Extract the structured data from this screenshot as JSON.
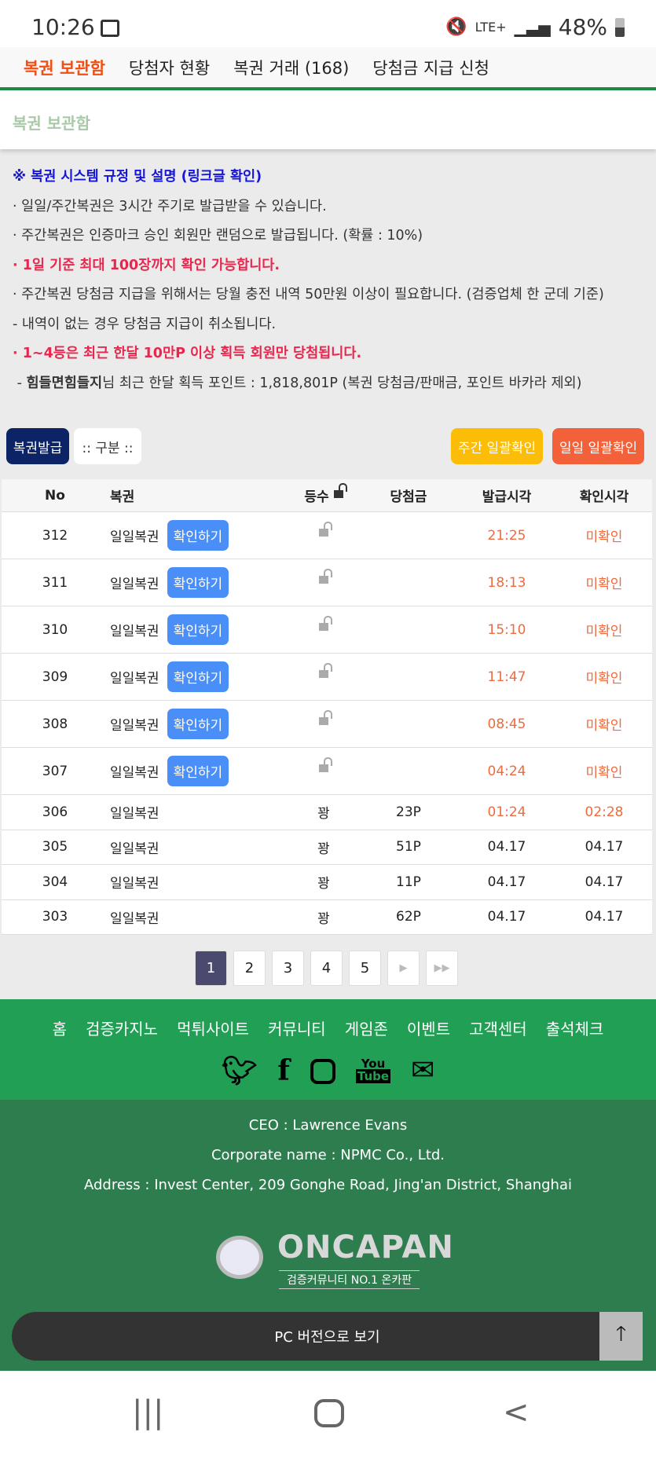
{
  "status_bar": {
    "time": "10:26",
    "network": "LTE+",
    "battery": "48%",
    "icons": [
      "gallery-icon",
      "mute-icon",
      "signal-icon",
      "battery-icon"
    ]
  },
  "tabs": [
    {
      "label": "복권 보관함",
      "active": true
    },
    {
      "label": "당첨자 현황"
    },
    {
      "label": "복권 거래 (168)"
    },
    {
      "label": "당첨금 지급 신청"
    }
  ],
  "section_title": "복권 보관함",
  "info": {
    "heading": "※ 복권 시스템 규정 및 설명 (링크글 확인)",
    "lines": [
      "· 일일/주간복권은 3시간 주기로 발급받을 수 있습니다.",
      "· 주간복권은 인증마크 승인 회원만 랜덤으로 발급됩니다. (확률 : 10%)",
      "· 1일 기준 최대 100장까지 확인 가능합니다.",
      "· 주간복권 당첨금 지급을 위해서는 당월 충전 내역 50만원 이상이 필요합니다. (검증업체 한 군데 기준)",
      " - 내역이 없는 경우 당첨금 지급이 취소됩니다.",
      "· 1~4등은 최근 한달 10만P 이상 획득 회원만 당첨됩니다."
    ],
    "points_prefix": " - ",
    "points_user": "힘들면힘들지",
    "points_text": "님 최근 한달 획득 포인트 : 1,818,801P (복권 당첨금/판매금, 포인트 바카라 제외)"
  },
  "toolbar": {
    "issue": "복권발급",
    "filter": ":: 구분 ::",
    "weekly_confirm": "주간 일괄확인",
    "daily_confirm": "일일 일괄확인"
  },
  "colors": {
    "issue": "#0c2466",
    "weekly": "#fbbd08",
    "daily": "#f2613a",
    "accent": "#f04e12",
    "footer": "#21a055",
    "footer_dark": "#2e7d4f"
  },
  "table": {
    "headers": [
      "No",
      "복권",
      "등수",
      "당첨금",
      "발급시각",
      "확인시각"
    ],
    "check_label": "확인하기",
    "rows": [
      {
        "no": "312",
        "name": "일일복권",
        "rank": "",
        "prize": "",
        "issued": "21:25",
        "checked": "미확인"
      },
      {
        "no": "311",
        "name": "일일복권",
        "rank": "",
        "prize": "",
        "issued": "18:13",
        "checked": "미확인"
      },
      {
        "no": "310",
        "name": "일일복권",
        "rank": "",
        "prize": "",
        "issued": "15:10",
        "checked": "미확인"
      },
      {
        "no": "309",
        "name": "일일복권",
        "rank": "",
        "prize": "",
        "issued": "11:47",
        "checked": "미확인"
      },
      {
        "no": "308",
        "name": "일일복권",
        "rank": "",
        "prize": "",
        "issued": "08:45",
        "checked": "미확인"
      },
      {
        "no": "307",
        "name": "일일복권",
        "rank": "",
        "prize": "",
        "issued": "04:24",
        "checked": "미확인"
      },
      {
        "no": "306",
        "name": "일일복권",
        "rank": "꽝",
        "prize": "23P",
        "issued": "01:24",
        "checked": "02:28"
      },
      {
        "no": "305",
        "name": "일일복권",
        "rank": "꽝",
        "prize": "51P",
        "issued": "04.17",
        "checked": "04.17"
      },
      {
        "no": "304",
        "name": "일일복권",
        "rank": "꽝",
        "prize": "11P",
        "issued": "04.17",
        "checked": "04.17"
      },
      {
        "no": "303",
        "name": "일일복권",
        "rank": "꽝",
        "prize": "62P",
        "issued": "04.17",
        "checked": "04.17"
      }
    ]
  },
  "pagination": {
    "pages": [
      "1",
      "2",
      "3",
      "4",
      "5"
    ],
    "current": "1",
    "next": "▶",
    "last": "▶▶"
  },
  "footer": {
    "nav": [
      "홈",
      "검증카지노",
      "먹튀사이트",
      "커뮤니티",
      "게임존",
      "이벤트",
      "고객센터",
      "출석체크"
    ],
    "social": [
      "twitter-icon",
      "facebook-icon",
      "instagram-icon",
      "youtube-icon",
      "mail-icon"
    ],
    "ceo": "CEO : Lawrence Evans",
    "corp": "Corporate name : NPMC Co., Ltd.",
    "address": "Address : Invest Center, 209 Gonghe Road, Jing'an District, Shanghai",
    "logo_text": "ONCAPAN",
    "logo_sub": "검증커뮤니티 NO.1 온카판",
    "pc_version": "PC 버전으로 보기"
  }
}
